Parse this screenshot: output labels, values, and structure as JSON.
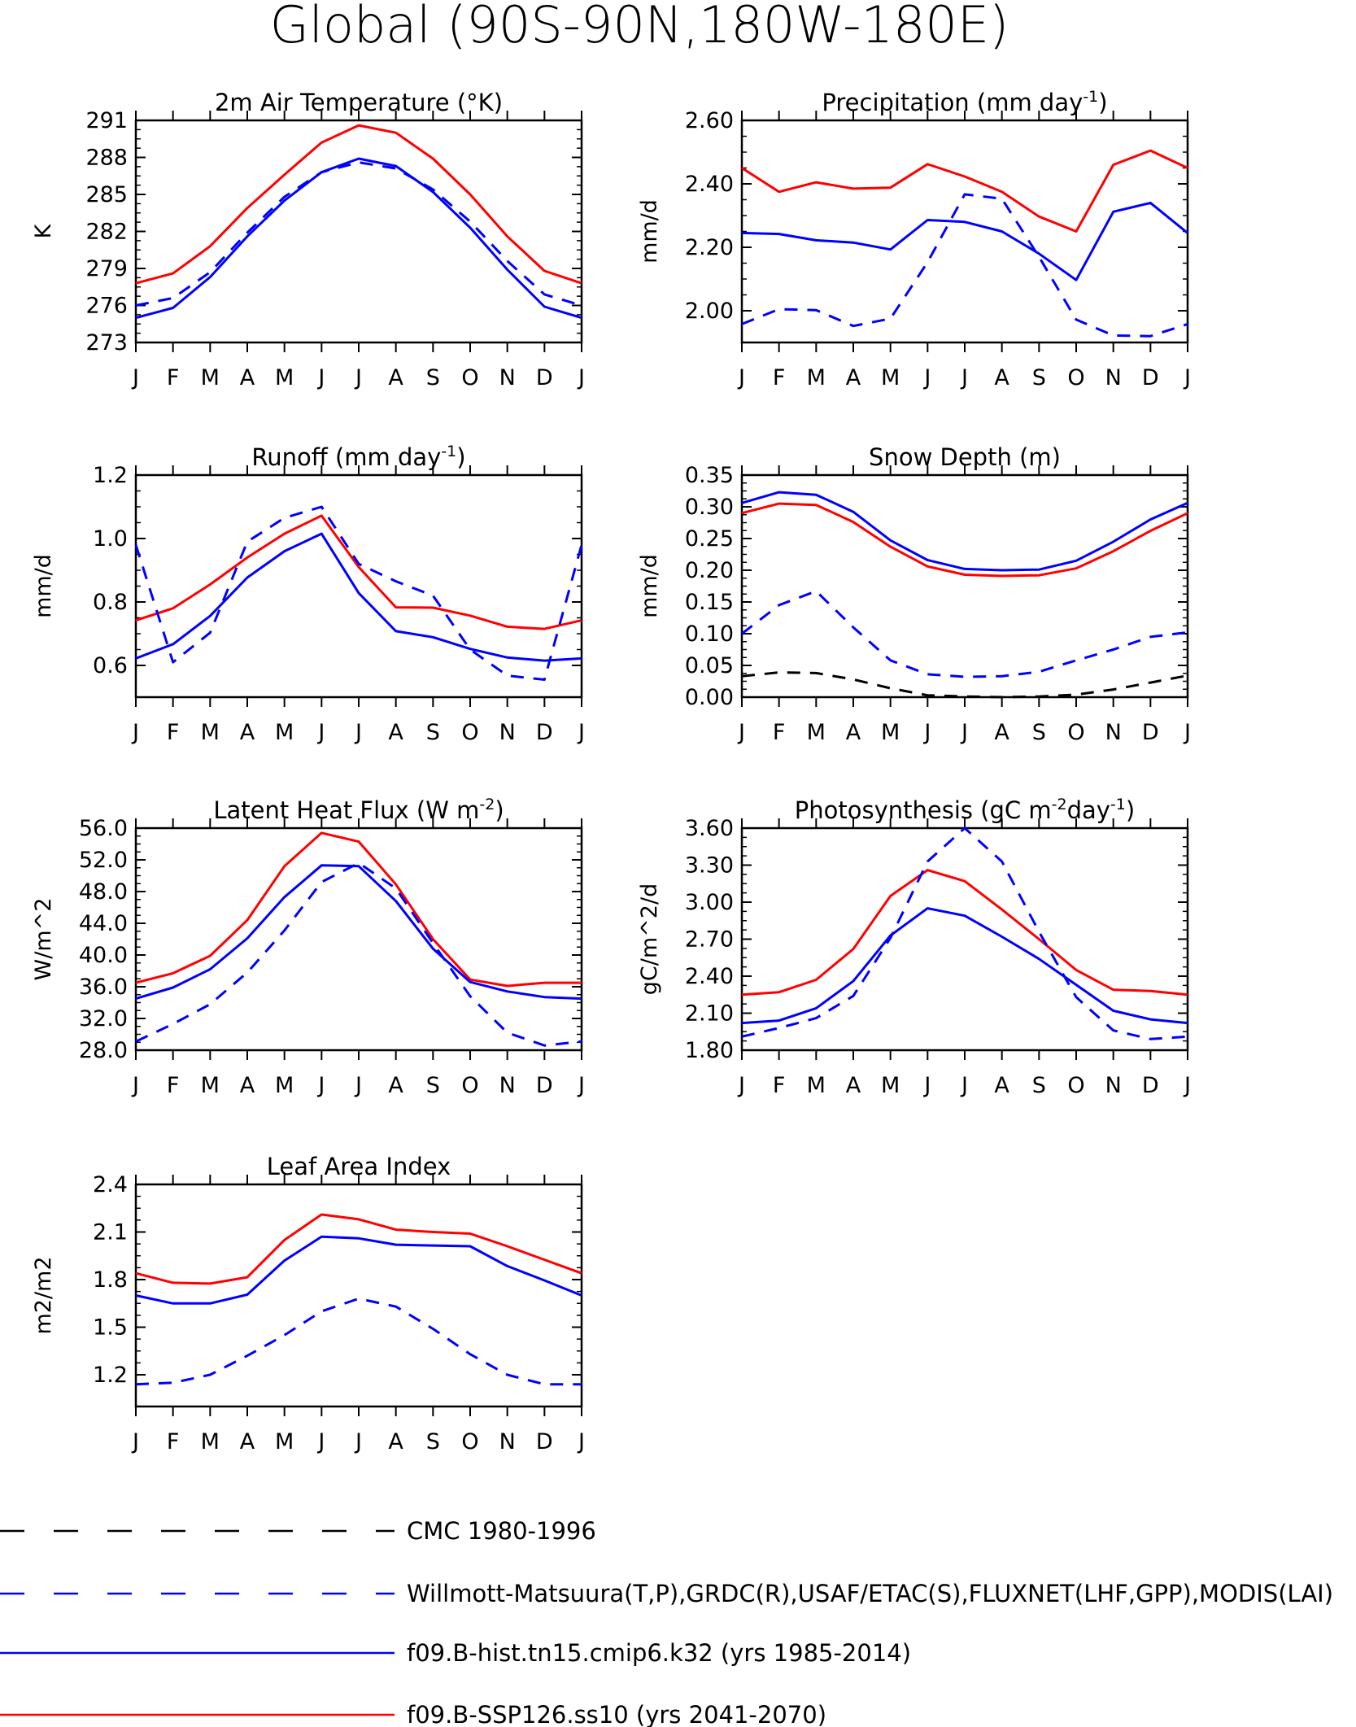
{
  "figure_title": "Global (90S-90N,180W-180E)",
  "legend": [
    {
      "label": "CMC 1980-1996",
      "color": "#000000",
      "dash": true
    },
    {
      "label": "Willmott-Matsuura(T,P),GRDC(R),USAF/ETAC(S),FLUXNET(LHF,GPP),MODIS(LAI)",
      "color": "#0000ff",
      "dash": true
    },
    {
      "label": "f09.B-hist.tn15.cmip6.k32 (yrs 1985-2014)",
      "color": "#0000ff",
      "dash": false
    },
    {
      "label": "f09.B-SSP126.ss10 (yrs 2041-2070)",
      "color": "#ff0000",
      "dash": false
    }
  ],
  "chart_data": [
    {
      "type": "line",
      "title": "2m Air Temperature (°K)",
      "ylabel": "K",
      "ylim": [
        273,
        291
      ],
      "yticks": [
        "273",
        "276",
        "279",
        "282",
        "285",
        "288",
        "291"
      ],
      "categories": [
        "J",
        "F",
        "M",
        "A",
        "M",
        "J",
        "J",
        "A",
        "S",
        "O",
        "N",
        "D",
        "J"
      ],
      "series": [
        {
          "style": "red-solid",
          "values": [
            277.8,
            278.6,
            280.8,
            283.9,
            286.6,
            289.2,
            290.6,
            290.0,
            287.9,
            285.0,
            281.6,
            278.8,
            277.8
          ]
        },
        {
          "style": "blue-solid",
          "values": [
            275.0,
            275.8,
            278.3,
            281.6,
            284.5,
            286.8,
            287.9,
            287.3,
            285.2,
            282.3,
            278.9,
            275.9,
            275.0
          ]
        },
        {
          "style": "blue-dash",
          "values": [
            276.0,
            276.6,
            278.7,
            281.9,
            284.8,
            286.8,
            287.6,
            287.1,
            285.4,
            282.8,
            279.6,
            276.9,
            276.0
          ]
        }
      ]
    },
    {
      "type": "line",
      "title": "Precipitation (mm day",
      "title_sup": "-1",
      "title_end": ")",
      "ylabel": "mm/d",
      "ylim": [
        1.9,
        2.6
      ],
      "yticks": [
        "2.00",
        "2.20",
        "2.40",
        "2.60"
      ],
      "categories": [
        "J",
        "F",
        "M",
        "A",
        "M",
        "J",
        "J",
        "A",
        "S",
        "O",
        "N",
        "D",
        "J"
      ],
      "series": [
        {
          "style": "red-solid",
          "values": [
            2.45,
            2.375,
            2.405,
            2.385,
            2.388,
            2.462,
            2.423,
            2.375,
            2.297,
            2.25,
            2.46,
            2.505,
            2.45
          ]
        },
        {
          "style": "blue-solid",
          "values": [
            2.245,
            2.242,
            2.222,
            2.215,
            2.193,
            2.286,
            2.28,
            2.25,
            2.18,
            2.097,
            2.312,
            2.34,
            2.245
          ]
        },
        {
          "style": "blue-dash",
          "values": [
            1.958,
            2.005,
            2.002,
            1.952,
            1.975,
            2.153,
            2.367,
            2.353,
            2.17,
            1.972,
            1.922,
            1.92,
            1.958
          ]
        }
      ]
    },
    {
      "type": "line",
      "title": "Runoff (mm day",
      "title_sup": "-1",
      "title_end": ")",
      "ylabel": "mm/d",
      "ylim": [
        0.5,
        1.2
      ],
      "yticks": [
        "0.6",
        "0.8",
        "1.0",
        "1.2"
      ],
      "categories": [
        "J",
        "F",
        "M",
        "A",
        "M",
        "J",
        "J",
        "A",
        "S",
        "O",
        "N",
        "D",
        "J"
      ],
      "series": [
        {
          "style": "red-solid",
          "values": [
            0.742,
            0.78,
            0.855,
            0.94,
            1.015,
            1.072,
            0.91,
            0.783,
            0.782,
            0.757,
            0.722,
            0.715,
            0.742
          ]
        },
        {
          "style": "blue-solid",
          "values": [
            0.622,
            0.667,
            0.756,
            0.877,
            0.96,
            1.015,
            0.828,
            0.708,
            0.689,
            0.652,
            0.625,
            0.615,
            0.622
          ]
        },
        {
          "style": "blue-dash",
          "values": [
            0.98,
            0.61,
            0.703,
            0.99,
            1.065,
            1.1,
            0.92,
            0.865,
            0.82,
            0.65,
            0.568,
            0.555,
            0.98
          ]
        }
      ]
    },
    {
      "type": "line",
      "title": "Snow Depth (m)",
      "ylabel": "mm/d",
      "ylim": [
        0,
        0.35
      ],
      "yticks": [
        "0.00",
        "0.05",
        "0.10",
        "0.15",
        "0.20",
        "0.25",
        "0.30",
        "0.35"
      ],
      "categories": [
        "J",
        "F",
        "M",
        "A",
        "M",
        "J",
        "J",
        "A",
        "S",
        "O",
        "N",
        "D",
        "J"
      ],
      "series": [
        {
          "style": "red-solid",
          "values": [
            0.29,
            0.305,
            0.303,
            0.276,
            0.237,
            0.206,
            0.193,
            0.191,
            0.192,
            0.203,
            0.23,
            0.262,
            0.29
          ]
        },
        {
          "style": "blue-solid",
          "values": [
            0.306,
            0.323,
            0.319,
            0.292,
            0.247,
            0.216,
            0.202,
            0.2,
            0.201,
            0.215,
            0.245,
            0.28,
            0.306
          ]
        },
        {
          "style": "blue-dash",
          "values": [
            0.1,
            0.145,
            0.167,
            0.11,
            0.058,
            0.036,
            0.032,
            0.033,
            0.04,
            0.058,
            0.075,
            0.095,
            0.102
          ]
        },
        {
          "style": "black-dash",
          "values": [
            0.033,
            0.039,
            0.038,
            0.028,
            0.014,
            0.003,
            0.001,
            0.0,
            0.001,
            0.004,
            0.012,
            0.023,
            0.034
          ]
        }
      ]
    },
    {
      "type": "line",
      "title": "Latent Heat Flux (W m",
      "title_sup": "-2",
      "title_end": ")",
      "ylabel": "W/m^2",
      "ylim": [
        28,
        56
      ],
      "yticks": [
        "28.0",
        "32.0",
        "36.0",
        "40.0",
        "44.0",
        "48.0",
        "52.0",
        "56.0"
      ],
      "categories": [
        "J",
        "F",
        "M",
        "A",
        "M",
        "J",
        "J",
        "A",
        "S",
        "O",
        "N",
        "D",
        "J"
      ],
      "series": [
        {
          "style": "red-solid",
          "values": [
            36.5,
            37.7,
            39.9,
            44.4,
            51.2,
            55.4,
            54.3,
            48.9,
            42.0,
            36.9,
            36.1,
            36.5,
            36.5
          ]
        },
        {
          "style": "blue-solid",
          "values": [
            34.5,
            35.9,
            38.2,
            42.1,
            47.3,
            51.3,
            51.2,
            46.8,
            40.8,
            36.6,
            35.4,
            34.7,
            34.5
          ]
        },
        {
          "style": "blue-dash",
          "values": [
            29.1,
            31.3,
            33.8,
            37.8,
            43.1,
            49.2,
            51.6,
            48.4,
            41.5,
            34.8,
            30.2,
            28.6,
            29.1
          ]
        }
      ]
    },
    {
      "type": "line",
      "title": "Photosynthesis (gC m",
      "title_sup": "-2",
      "title_mid": "day",
      "title_sup2": "-1",
      "title_end": ")",
      "ylabel": "gC/m^2/d",
      "ylim": [
        1.8,
        3.6
      ],
      "yticks": [
        "1.80",
        "2.10",
        "2.40",
        "2.70",
        "3.00",
        "3.30",
        "3.60"
      ],
      "categories": [
        "J",
        "F",
        "M",
        "A",
        "M",
        "J",
        "J",
        "A",
        "S",
        "O",
        "N",
        "D",
        "J"
      ],
      "series": [
        {
          "style": "red-solid",
          "values": [
            2.25,
            2.27,
            2.37,
            2.62,
            3.05,
            3.26,
            3.17,
            2.94,
            2.7,
            2.45,
            2.29,
            2.28,
            2.25
          ]
        },
        {
          "style": "blue-solid",
          "values": [
            2.02,
            2.04,
            2.14,
            2.36,
            2.73,
            2.95,
            2.89,
            2.72,
            2.54,
            2.33,
            2.12,
            2.05,
            2.02
          ]
        },
        {
          "style": "blue-dash",
          "values": [
            1.91,
            1.98,
            2.06,
            2.24,
            2.71,
            3.33,
            3.6,
            3.33,
            2.76,
            2.23,
            1.96,
            1.89,
            1.91
          ]
        }
      ]
    },
    {
      "type": "line",
      "title": "Leaf Area Index",
      "ylabel": "m2/m2",
      "ylim": [
        1.0,
        2.4
      ],
      "yticks": [
        "1.2",
        "1.5",
        "1.8",
        "2.1",
        "2.4"
      ],
      "categories": [
        "J",
        "F",
        "M",
        "A",
        "M",
        "J",
        "J",
        "A",
        "S",
        "O",
        "N",
        "D",
        "J"
      ],
      "series": [
        {
          "style": "red-solid",
          "values": [
            1.84,
            1.78,
            1.775,
            1.815,
            2.05,
            2.21,
            2.18,
            2.115,
            2.1,
            2.09,
            2.01,
            1.925,
            1.84
          ]
        },
        {
          "style": "blue-solid",
          "values": [
            1.7,
            1.65,
            1.65,
            1.705,
            1.92,
            2.07,
            2.06,
            2.02,
            2.015,
            2.01,
            1.885,
            1.795,
            1.7
          ]
        },
        {
          "style": "blue-dash",
          "values": [
            1.14,
            1.15,
            1.2,
            1.32,
            1.45,
            1.6,
            1.68,
            1.63,
            1.49,
            1.33,
            1.2,
            1.14,
            1.14
          ]
        }
      ]
    }
  ]
}
